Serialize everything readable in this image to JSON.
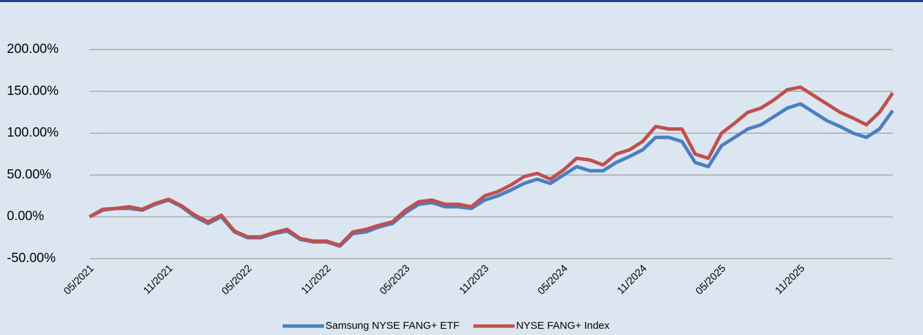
{
  "chart_data": {
    "type": "line",
    "categories": [
      "05/2021",
      null,
      null,
      null,
      null,
      null,
      "11/2021",
      null,
      null,
      null,
      null,
      null,
      "05/2022",
      null,
      null,
      null,
      null,
      null,
      "11/2022",
      null,
      null,
      null,
      null,
      null,
      "05/2023",
      null,
      null,
      null,
      null,
      null,
      "11/2023",
      null,
      null,
      null,
      null,
      null,
      "05/2024",
      null,
      null,
      null,
      null,
      null,
      "11/2024",
      null,
      null,
      null,
      null,
      null,
      "05/2025",
      null,
      null,
      null,
      null,
      null,
      "11/2025",
      null,
      null,
      null,
      null,
      null,
      null,
      null
    ],
    "series": [
      {
        "name": "Samsung NYSE FANG+ ETF",
        "color": "#4a7fc1",
        "values": [
          0,
          8,
          10,
          10,
          8,
          15,
          20,
          12,
          0,
          -8,
          0,
          -18,
          -25,
          -25,
          -20,
          -17,
          -27,
          -30,
          -30,
          -35,
          -20,
          -18,
          -12,
          -8,
          5,
          15,
          17,
          12,
          12,
          10,
          20,
          25,
          32,
          40,
          45,
          40,
          50,
          60,
          55,
          55,
          65,
          72,
          80,
          95,
          95,
          90,
          65,
          60,
          85,
          95,
          105,
          110,
          120,
          130,
          135,
          125,
          115,
          108,
          100,
          95,
          105,
          127
        ]
      },
      {
        "name": "NYSE FANG+ Index",
        "color": "#c0504d",
        "values": [
          0,
          9,
          10,
          12,
          9,
          16,
          21,
          13,
          2,
          -6,
          2,
          -17,
          -24,
          -24,
          -19,
          -15,
          -26,
          -29,
          -29,
          -34,
          -18,
          -15,
          -10,
          -6,
          8,
          18,
          20,
          15,
          15,
          12,
          25,
          30,
          38,
          48,
          52,
          45,
          56,
          70,
          68,
          62,
          75,
          80,
          90,
          108,
          105,
          105,
          75,
          70,
          100,
          112,
          125,
          130,
          140,
          152,
          155,
          145,
          135,
          125,
          118,
          110,
          125,
          148
        ]
      }
    ],
    "ylim": [
      -50,
      200
    ],
    "yticks": [
      {
        "value": -50,
        "label": "-50.00%"
      },
      {
        "value": 0,
        "label": "0.00%"
      },
      {
        "value": 50,
        "label": "50.00%"
      },
      {
        "value": 100,
        "label": "100.00%"
      },
      {
        "value": 150,
        "label": "150.00%"
      },
      {
        "value": 200,
        "label": "200.00%"
      }
    ],
    "grid": true,
    "legend": "bottom"
  }
}
